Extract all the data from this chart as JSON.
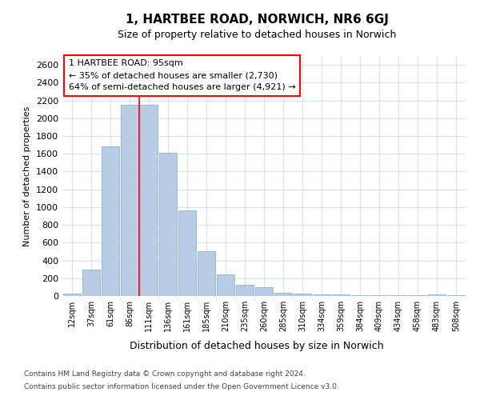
{
  "title": "1, HARTBEE ROAD, NORWICH, NR6 6GJ",
  "subtitle": "Size of property relative to detached houses in Norwich",
  "xlabel": "Distribution of detached houses by size in Norwich",
  "ylabel": "Number of detached properties",
  "categories": [
    "12sqm",
    "37sqm",
    "61sqm",
    "86sqm",
    "111sqm",
    "136sqm",
    "161sqm",
    "185sqm",
    "210sqm",
    "235sqm",
    "260sqm",
    "285sqm",
    "310sqm",
    "334sqm",
    "359sqm",
    "384sqm",
    "409sqm",
    "434sqm",
    "458sqm",
    "483sqm",
    "508sqm"
  ],
  "values": [
    25,
    300,
    1680,
    2150,
    2150,
    1610,
    960,
    500,
    245,
    125,
    95,
    40,
    30,
    20,
    18,
    12,
    5,
    5,
    5,
    20,
    5
  ],
  "bar_color": "#b8cce4",
  "bar_edge_color": "#7ba7cc",
  "grid_color": "#c8d4e8",
  "bg_color": "#ffffff",
  "annotation_line1": "1 HARTBEE ROAD: 95sqm",
  "annotation_line2": "← 35% of detached houses are smaller (2,730)",
  "annotation_line3": "64% of semi-detached houses are larger (4,921) →",
  "redline_x": 3.5,
  "ylim": [
    0,
    2700
  ],
  "yticks": [
    0,
    200,
    400,
    600,
    800,
    1000,
    1200,
    1400,
    1600,
    1800,
    2000,
    2200,
    2400,
    2600
  ],
  "footer1": "Contains HM Land Registry data © Crown copyright and database right 2024.",
  "footer2": "Contains public sector information licensed under the Open Government Licence v3.0.",
  "title_fontsize": 11,
  "subtitle_fontsize": 9,
  "ylabel_fontsize": 8,
  "xlabel_fontsize": 9,
  "ytick_fontsize": 8,
  "xtick_fontsize": 7,
  "annot_fontsize": 8,
  "footer_fontsize": 6.5
}
